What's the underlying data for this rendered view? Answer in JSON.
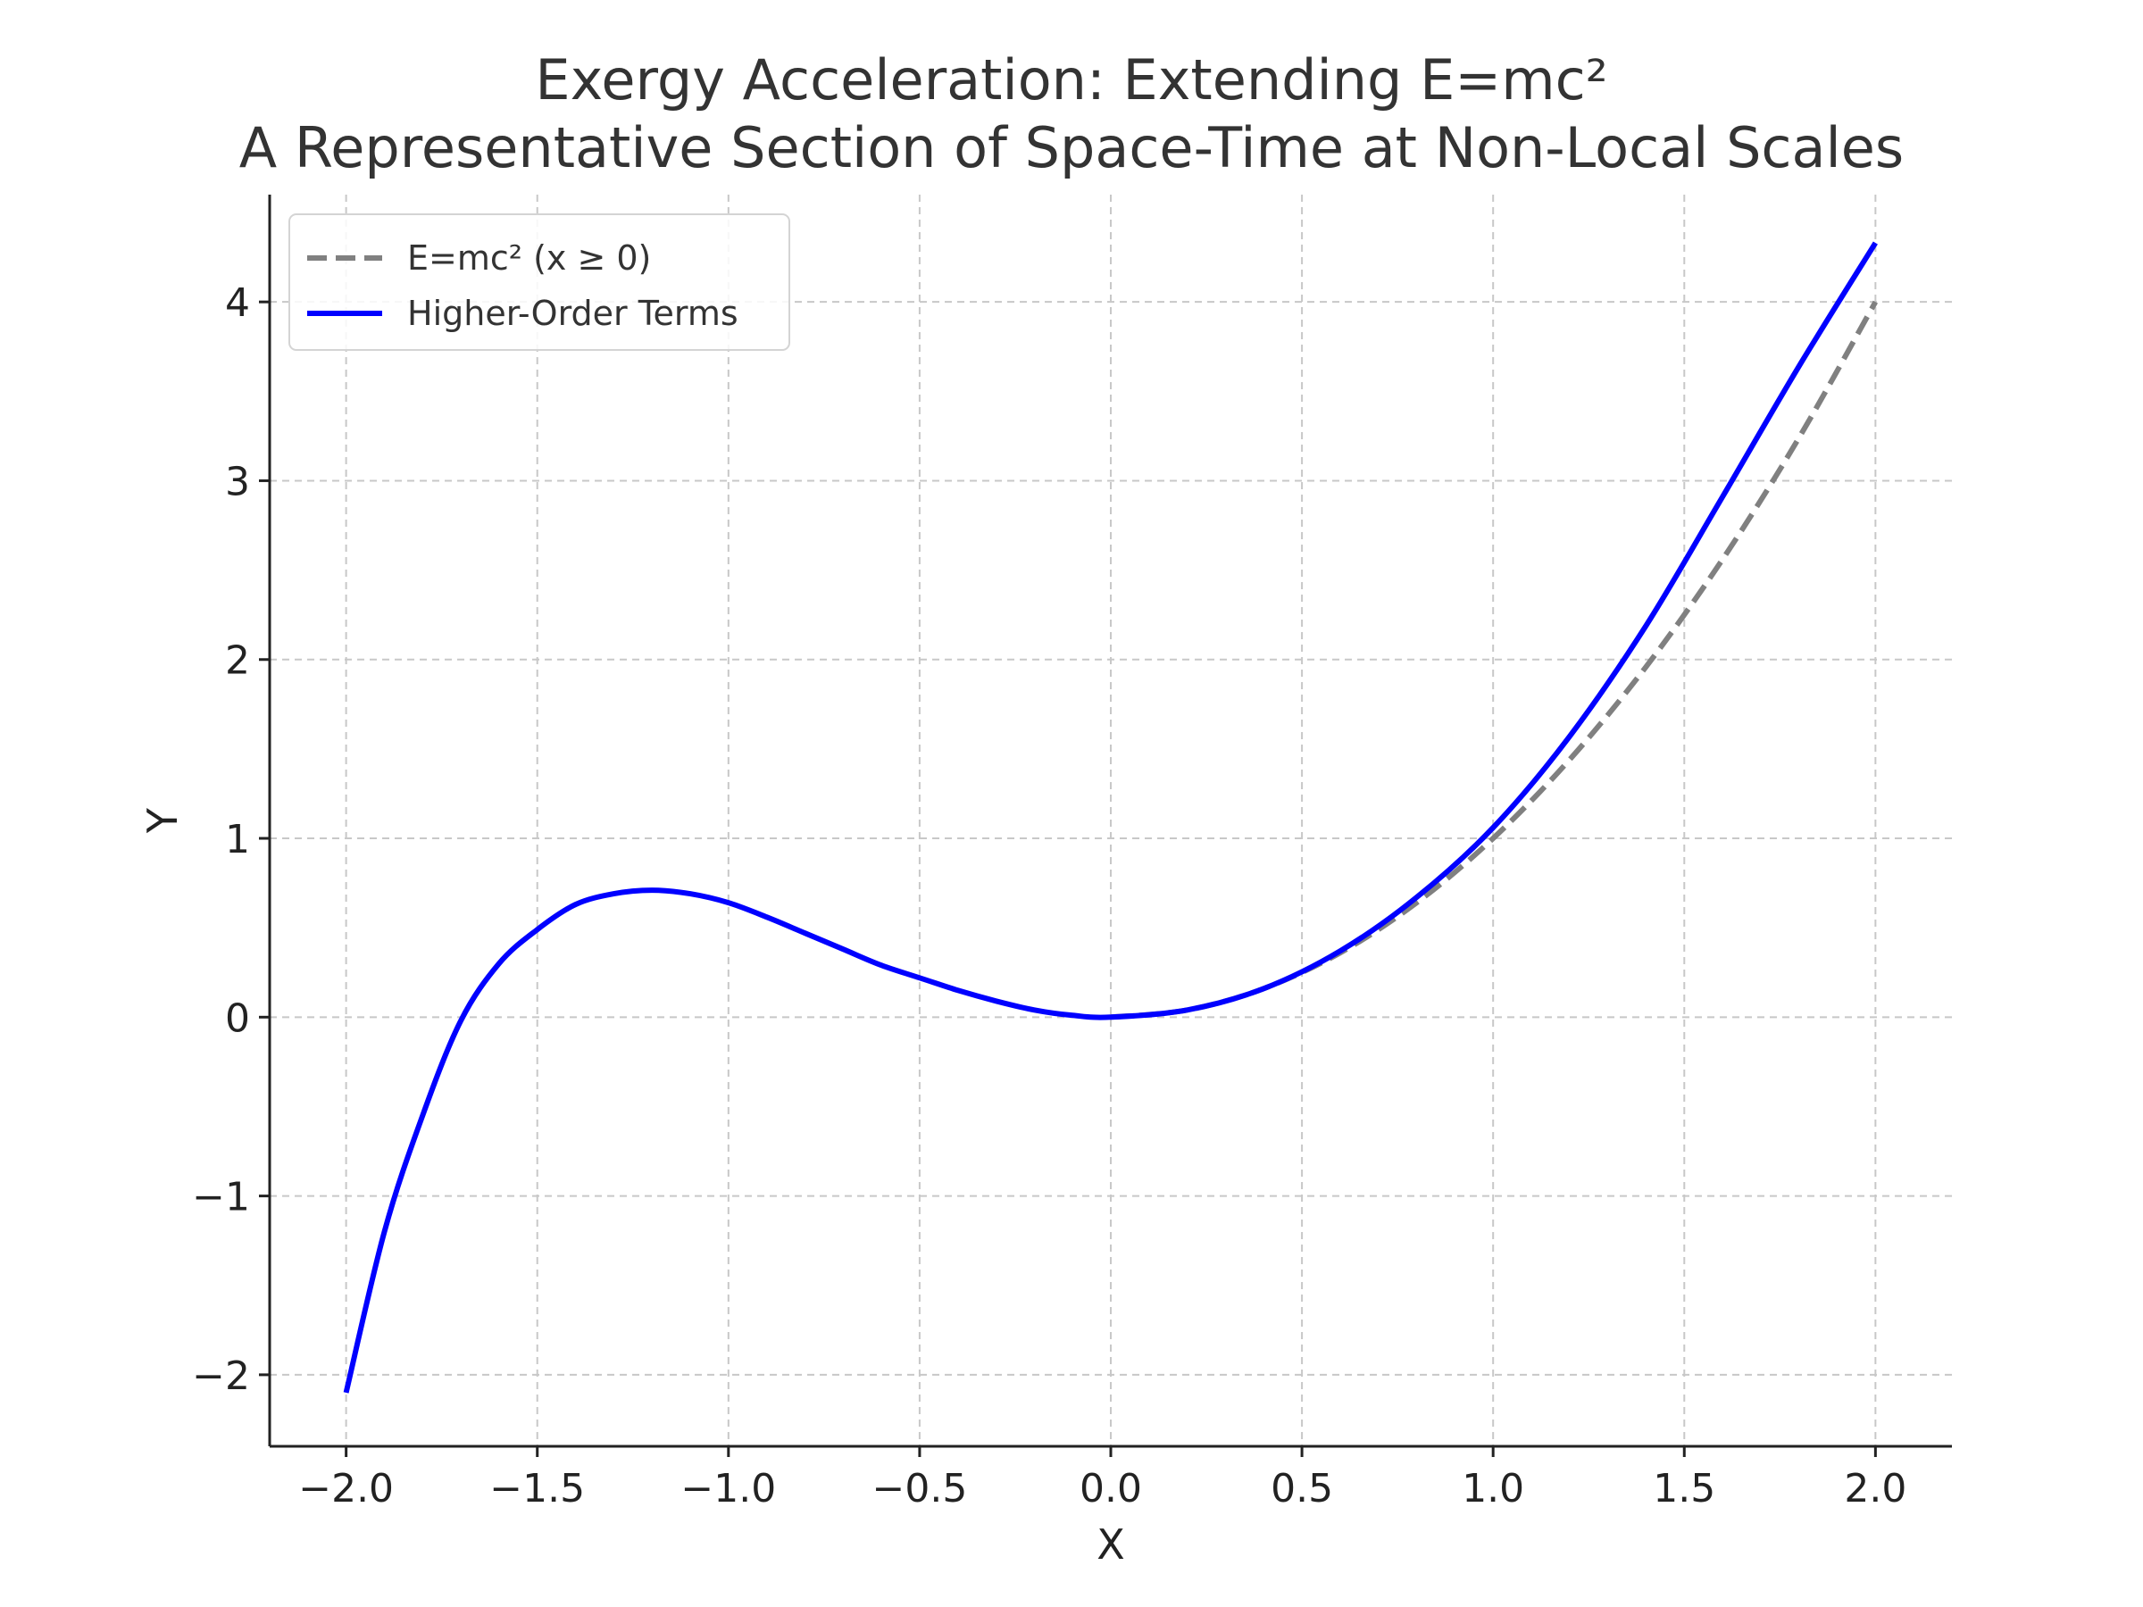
{
  "chart_data": {
    "type": "line",
    "title": "Exergy Acceleration: Extending E=mc²\nA Representative Section of Space-Time at Non-Local Scales",
    "xlabel": "X",
    "ylabel": "Y",
    "xlim": [
      -2.2,
      2.2
    ],
    "ylim": [
      -2.4,
      4.6
    ],
    "xticks": [
      -2.0,
      -1.5,
      -1.0,
      -0.5,
      0.0,
      0.5,
      1.0,
      1.5,
      2.0
    ],
    "xtick_labels": [
      "−2.0",
      "−1.5",
      "−1.0",
      "−0.5",
      "0.0",
      "0.5",
      "1.0",
      "1.5",
      "2.0"
    ],
    "yticks": [
      -2,
      -1,
      0,
      1,
      2,
      3,
      4
    ],
    "ytick_labels": [
      "−2",
      "−1",
      "0",
      "1",
      "2",
      "3",
      "4"
    ],
    "grid": true,
    "legend_position": "top-left",
    "series": [
      {
        "name": "E=mc² (x ≥ 0)",
        "color": "#808080",
        "style": "dashed",
        "x": [
          0.0,
          0.2,
          0.4,
          0.6,
          0.8,
          1.0,
          1.2,
          1.4,
          1.6,
          1.8,
          2.0
        ],
        "y": [
          0.0,
          0.04,
          0.16,
          0.36,
          0.64,
          1.0,
          1.44,
          1.96,
          2.56,
          3.24,
          4.0
        ]
      },
      {
        "name": "Higher-Order Terms",
        "color": "#0000ff",
        "style": "solid",
        "x": [
          -2.0,
          -1.9,
          -1.8,
          -1.7,
          -1.6,
          -1.5,
          -1.4,
          -1.3,
          -1.2,
          -1.1,
          -1.0,
          -0.9,
          -0.8,
          -0.7,
          -0.6,
          -0.5,
          -0.4,
          -0.3,
          -0.2,
          -0.1,
          0.0,
          0.2,
          0.4,
          0.6,
          0.8,
          1.0,
          1.2,
          1.4,
          1.6,
          1.8,
          2.0
        ],
        "y": [
          -2.1,
          -1.2,
          -0.55,
          -0.02,
          0.3,
          0.49,
          0.63,
          0.69,
          0.71,
          0.69,
          0.64,
          0.56,
          0.47,
          0.38,
          0.29,
          0.22,
          0.15,
          0.09,
          0.04,
          0.01,
          0.0,
          0.04,
          0.16,
          0.37,
          0.67,
          1.06,
          1.57,
          2.19,
          2.91,
          3.64,
          4.33
        ]
      }
    ]
  }
}
